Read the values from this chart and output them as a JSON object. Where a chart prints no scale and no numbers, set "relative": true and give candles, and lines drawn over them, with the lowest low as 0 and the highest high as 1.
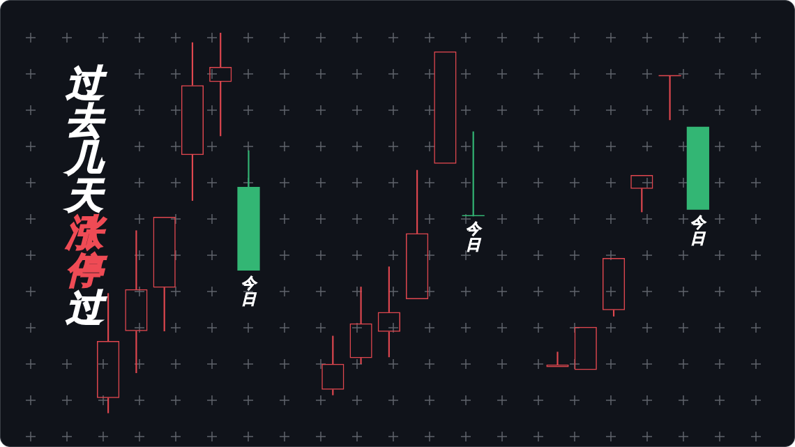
{
  "chart_data": {
    "type": "candlestick",
    "title": "过去几天涨停过",
    "relative": true,
    "categories": [
      null,
      null,
      null,
      null,
      null,
      null,
      null,
      null,
      null,
      null,
      null,
      null,
      null,
      null,
      null,
      null,
      null,
      null,
      null,
      null,
      null,
      null
    ],
    "ohlc": [
      [
        0.04,
        0.315,
        0.0,
        0.19
      ],
      [
        0.216,
        0.48,
        0.106,
        0.326
      ],
      [
        0.33,
        0.516,
        0.216,
        0.516
      ],
      [
        0.679,
        0.974,
        0.559,
        0.862
      ],
      [
        0.871,
        1.0,
        0.729,
        0.91
      ],
      [
        0.595,
        0.69,
        0.375,
        0.375
      ],
      null,
      null,
      [
        0.062,
        0.203,
        0.048,
        0.13
      ],
      [
        0.145,
        0.332,
        0.13,
        0.236
      ],
      [
        0.214,
        0.385,
        0.148,
        0.266
      ],
      [
        0.3,
        0.639,
        0.3,
        0.473
      ],
      [
        0.656,
        0.951,
        0.656,
        0.951
      ],
      [
        0.518,
        0.74,
        0.518,
        0.518
      ],
      null,
      null,
      [
        0.121,
        0.161,
        0.121,
        0.128
      ],
      [
        0.114,
        0.227,
        0.114,
        0.227
      ],
      [
        0.271,
        0.408,
        0.255,
        0.408
      ],
      [
        0.59,
        0.626,
        0.529,
        0.626
      ],
      [
        0.886,
        0.886,
        0.771,
        0.886
      ],
      [
        0.753,
        0.753,
        0.535,
        0.535
      ]
    ],
    "colors": [
      "#e0474f",
      "#e0474f",
      "#e0474f",
      "#e0474f",
      "#e0474f",
      "#33b674",
      null,
      null,
      "#e0474f",
      "#e0474f",
      "#e0474f",
      "#e0474f",
      "#e0474f",
      "#33b674",
      null,
      null,
      "#e0474f",
      "#e0474f",
      "#e0474f",
      "#e0474f",
      "#e0474f",
      "#33b674"
    ],
    "annotations": [
      "今日",
      "今日",
      "今日"
    ]
  }
}
